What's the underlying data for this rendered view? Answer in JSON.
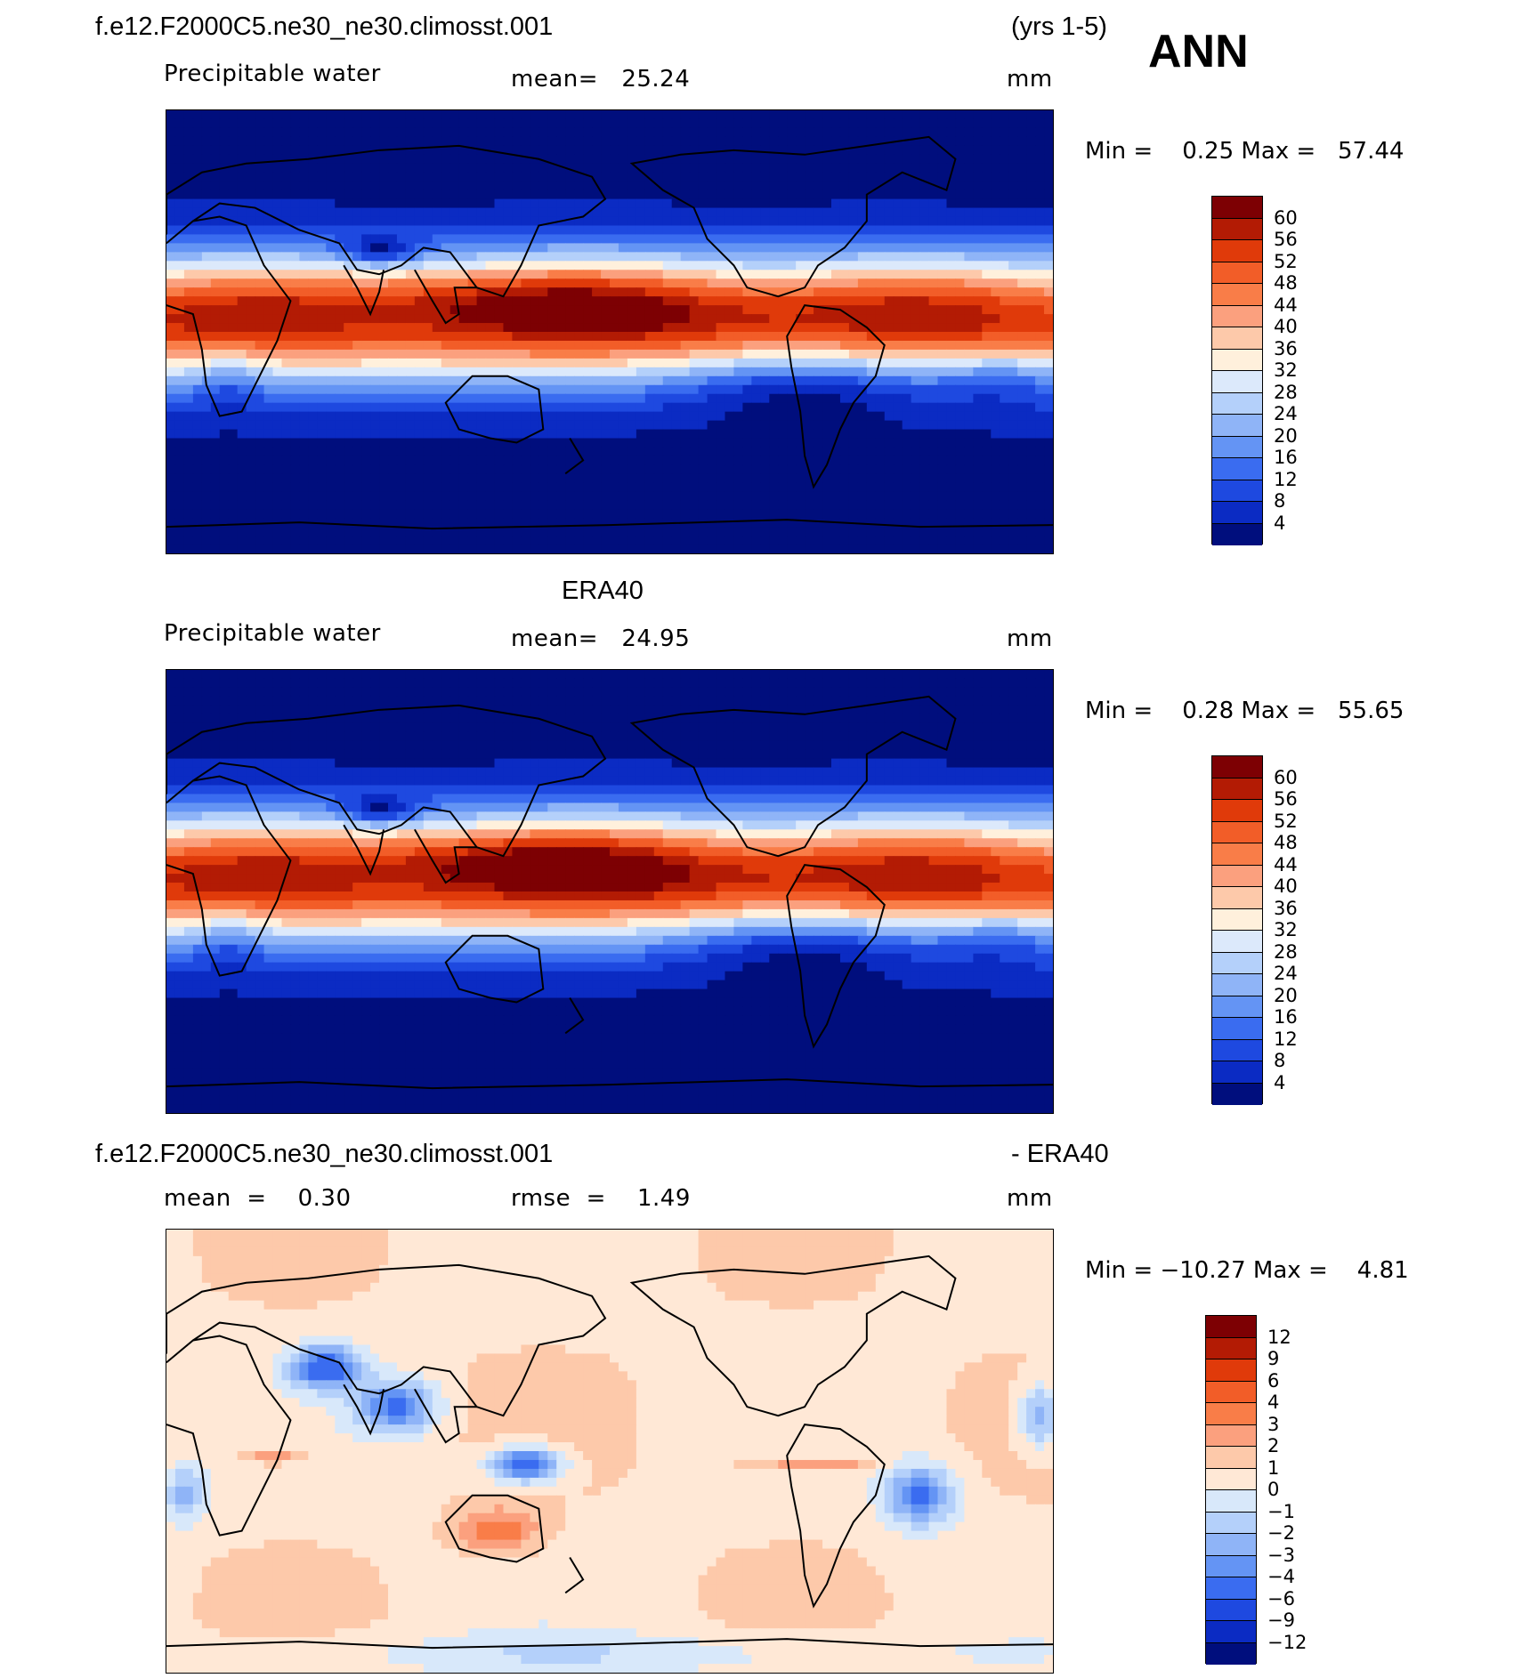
{
  "header": {
    "case_name": "f.e12.F2000C5.ne30_ne30.climosst.001",
    "years": "(yrs 1-5)",
    "season": "ANN"
  },
  "panels": [
    {
      "id": "model",
      "variable": "Precipitable water",
      "stat_left": "mean=   25.24",
      "units": "mm",
      "min_max": "Min =    0.25 Max =   57.44",
      "field": "model"
    },
    {
      "id": "obs",
      "title": "ERA40",
      "variable": "Precipitable water",
      "stat_left": "mean=   24.95",
      "units": "mm",
      "min_max": "Min =    0.28 Max =   55.65",
      "field": "obs"
    },
    {
      "id": "diff",
      "title_left": "f.e12.F2000C5.ne30_ne30.climosst.001",
      "title_right": "- ERA40",
      "stat_left": "mean  =    0.30",
      "stat_mid": "rmse  =    1.49",
      "units": "mm",
      "min_max": "Min = −10.27 Max =    4.81",
      "field": "diff"
    }
  ],
  "colorbars": {
    "abs": {
      "labels": [
        "60",
        "56",
        "52",
        "48",
        "44",
        "40",
        "36",
        "32",
        "28",
        "24",
        "20",
        "16",
        "12",
        "8",
        "4"
      ],
      "colors": [
        "#7d0003",
        "#b31b04",
        "#e03a0a",
        "#f25d28",
        "#f97d48",
        "#fba07e",
        "#fdc9aa",
        "#fff0dc",
        "#dce9fb",
        "#b4d0fa",
        "#8fb4f7",
        "#6494f4",
        "#3a6cf0",
        "#1e49e0",
        "#0b2bc3",
        "#000e7d"
      ]
    },
    "diff": {
      "labels": [
        "12",
        "9",
        "6",
        "4",
        "3",
        "2",
        "1",
        "0",
        "−1",
        "−2",
        "−3",
        "−4",
        "−6",
        "−9",
        "−12"
      ],
      "colors": [
        "#7d0003",
        "#b31b04",
        "#e03a0a",
        "#f25d28",
        "#f97d48",
        "#fba07e",
        "#fdc9aa",
        "#ffe8d6",
        "#d8e8fa",
        "#b4d0fa",
        "#8fb4f7",
        "#6494f4",
        "#3a6cf0",
        "#1e49e0",
        "#0b2bc3",
        "#000e7d"
      ]
    }
  }
}
